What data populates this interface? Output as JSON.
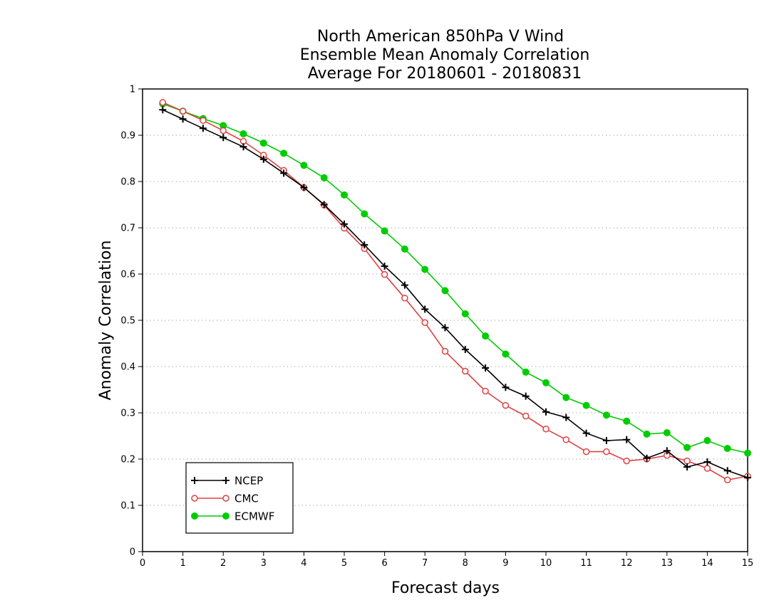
{
  "chart_data": {
    "type": "line",
    "title_lines": [
      "North American 850hPa V Wind",
      "Ensemble Mean Anomaly Correlation",
      "Average For 20180601 - 20180831"
    ],
    "xlabel": "Forecast days",
    "ylabel": "Anomaly Correlation",
    "xlim": [
      0,
      15
    ],
    "ylim": [
      0,
      1
    ],
    "x_ticks": [
      0,
      1,
      2,
      3,
      4,
      5,
      6,
      7,
      8,
      9,
      10,
      11,
      12,
      13,
      14,
      15
    ],
    "x_tick_labels": [
      "0",
      "1",
      "2",
      "3",
      "4",
      "5",
      "6",
      "7",
      "8",
      "9",
      "10",
      "11",
      "12",
      "13",
      "14",
      "15"
    ],
    "y_ticks": [
      0,
      0.1,
      0.2,
      0.3,
      0.4,
      0.5,
      0.6,
      0.7,
      0.8,
      0.9,
      1
    ],
    "y_tick_labels": [
      "0",
      "0.1",
      "0.2",
      "0.3",
      "0.4",
      "0.5",
      "0.6",
      "0.7",
      "0.8",
      "0.9",
      "1"
    ],
    "grid": "horizontal dotted",
    "legend_position": "bottom-left",
    "x": [
      0.5,
      1,
      1.5,
      2,
      2.5,
      3,
      3.5,
      4,
      4.5,
      5,
      5.5,
      6,
      6.5,
      7,
      7.5,
      8,
      8.5,
      9,
      9.5,
      10,
      10.5,
      11,
      11.5,
      12,
      12.5,
      13,
      13.5,
      14,
      14.5,
      15
    ],
    "series": [
      {
        "name": "NCEP",
        "color": "#000000",
        "marker": "plus",
        "values": [
          0.955,
          0.935,
          0.915,
          0.895,
          0.875,
          0.848,
          0.818,
          0.787,
          0.75,
          0.708,
          0.663,
          0.617,
          0.576,
          0.524,
          0.484,
          0.437,
          0.397,
          0.355,
          0.336,
          0.302,
          0.29,
          0.256,
          0.24,
          0.242,
          0.202,
          0.218,
          0.183,
          0.194,
          0.175,
          0.16
        ]
      },
      {
        "name": "CMC",
        "color": "#e04040",
        "marker": "open-circle",
        "values": [
          0.971,
          0.952,
          0.932,
          0.91,
          0.887,
          0.857,
          0.824,
          0.787,
          0.749,
          0.699,
          0.655,
          0.599,
          0.548,
          0.495,
          0.433,
          0.39,
          0.347,
          0.316,
          0.293,
          0.265,
          0.242,
          0.216,
          0.216,
          0.196,
          0.2,
          0.208,
          0.196,
          0.18,
          0.155,
          0.163
        ]
      },
      {
        "name": "ECMWF",
        "color": "#00cc00",
        "marker": "filled-circle",
        "values": [
          0.968,
          0.952,
          0.936,
          0.921,
          0.903,
          0.883,
          0.861,
          0.835,
          0.808,
          0.771,
          0.73,
          0.693,
          0.654,
          0.61,
          0.564,
          0.514,
          0.466,
          0.427,
          0.388,
          0.365,
          0.333,
          0.316,
          0.295,
          0.282,
          0.254,
          0.257,
          0.225,
          0.24,
          0.223,
          0.213
        ]
      }
    ]
  }
}
